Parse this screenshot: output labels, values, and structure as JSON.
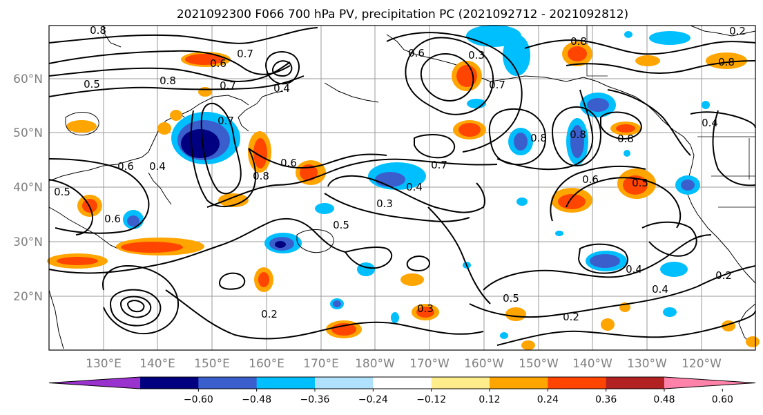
{
  "title": "2021092300 F066 700 hPa PV, precipitation PC (2021092712 - 2021092812)",
  "lat_labels": [
    "60°N",
    "50°N",
    "40°N",
    "30°N",
    "20°N"
  ],
  "lon_labels": [
    "130°E",
    "140°E",
    "150°E",
    "160°E",
    "170°E",
    "180°W",
    "170°W",
    "160°W",
    "150°W",
    "140°W",
    "130°W",
    "120°W"
  ],
  "colorbar": {
    "colors": [
      "#9a32cd",
      "#000080",
      "#3a5fcd",
      "#00bfff",
      "#b0e2ff",
      "#ffffff",
      "#ffec8b",
      "#ffa500",
      "#ff4500",
      "#b22222",
      "#ff82ab"
    ],
    "tick_labels": [
      "−0.60",
      "−0.48",
      "−0.36",
      "−0.24",
      "−0.12",
      "0.12",
      "0.24",
      "0.36",
      "0.48",
      "0.60"
    ]
  },
  "contour_labels": [
    "0.8",
    "0.7",
    "0.6",
    "0.5",
    "0.8",
    "0.7",
    "0.7",
    "0.5",
    "0.6",
    "0.4",
    "0.6",
    "0.6",
    "0.8",
    "0.3",
    "0.4",
    "0.5",
    "0.7",
    "0.4",
    "0.3",
    "0.2",
    "0.3",
    "0.2",
    "0.5",
    "0.8",
    "0.8",
    "0.6",
    "0.5",
    "0.8",
    "0.4",
    "0.4",
    "0.2",
    "0.7",
    "0.8",
    "0.2",
    "0.4",
    "0.6",
    "0.8"
  ]
}
